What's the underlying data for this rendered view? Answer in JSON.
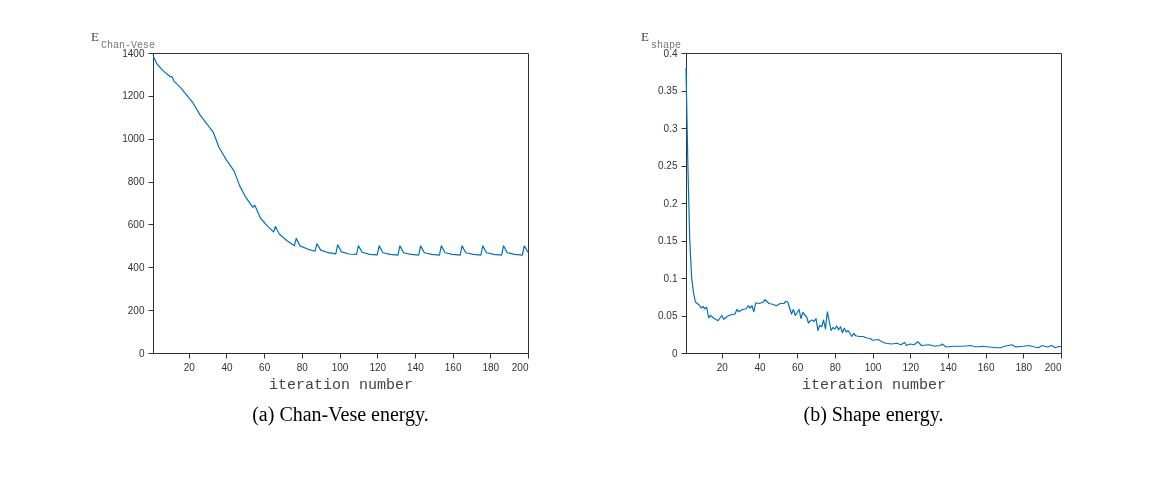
{
  "chart_data": [
    {
      "type": "line",
      "title": "(a) Chan-Vese energy.",
      "xlabel": "iteration number",
      "ylabel": "E$_{Chan-Vese}$",
      "grid": false,
      "line_style": "solid",
      "xlim": [
        1,
        200
      ],
      "xticks": [
        20,
        40,
        60,
        80,
        100,
        120,
        140,
        160,
        180,
        200
      ],
      "ylim": [
        0,
        1400
      ],
      "yticks": [
        0,
        200,
        400,
        600,
        800,
        1000,
        1200,
        1400
      ],
      "series": [
        {
          "color": "#0072bd",
          "x": [
            1,
            3,
            6,
            10,
            11,
            12,
            16,
            22,
            26,
            30,
            33,
            36,
            40,
            44,
            47,
            50,
            54,
            55,
            58,
            62,
            65,
            66,
            68,
            72,
            76,
            77,
            79,
            83,
            87,
            88,
            90,
            94,
            98,
            99,
            101,
            105,
            109,
            110,
            112,
            116,
            120,
            121,
            123,
            127,
            131,
            132,
            134,
            138,
            142,
            143,
            145,
            149,
            153,
            154,
            156,
            160,
            164,
            165,
            167,
            171,
            175,
            176,
            178,
            182,
            186,
            187,
            189,
            193,
            197,
            198,
            200
          ],
          "values": [
            1390,
            1350,
            1320,
            1290,
            1290,
            1270,
            1235,
            1170,
            1110,
            1065,
            1030,
            960,
            900,
            850,
            780,
            730,
            680,
            690,
            630,
            590,
            565,
            590,
            555,
            525,
            500,
            535,
            500,
            485,
            475,
            510,
            480,
            468,
            463,
            505,
            472,
            462,
            460,
            500,
            470,
            460,
            458,
            500,
            468,
            460,
            457,
            500,
            468,
            460,
            457,
            500,
            468,
            460,
            457,
            500,
            468,
            460,
            457,
            500,
            468,
            460,
            457,
            500,
            468,
            460,
            457,
            500,
            468,
            460,
            457,
            500,
            470
          ]
        }
      ]
    },
    {
      "type": "line",
      "title": "(b) Shape energy.",
      "xlabel": "iteration number",
      "ylabel": "E$_{shape}$",
      "grid": false,
      "line_style": "solid",
      "xlim": [
        1,
        200
      ],
      "xticks": [
        20,
        40,
        60,
        80,
        100,
        120,
        140,
        160,
        180,
        200
      ],
      "ylim": [
        0,
        0.4
      ],
      "yticks": [
        0,
        0.05,
        0.1,
        0.15,
        0.2,
        0.25,
        0.3,
        0.35,
        0.4
      ],
      "series": [
        {
          "color": "#0072bd",
          "x": [
            1,
            2,
            3,
            4,
            5,
            6,
            7,
            8,
            9,
            10,
            11,
            12,
            13,
            14,
            16,
            18,
            20,
            21,
            23,
            25,
            27,
            28,
            29,
            31,
            33,
            34,
            35,
            36,
            37,
            38,
            40,
            42,
            43,
            45,
            47,
            49,
            51,
            53,
            54,
            55,
            57,
            58,
            59,
            61,
            62,
            63,
            65,
            66,
            67,
            68,
            69,
            70,
            71,
            72,
            73,
            74,
            75,
            76,
            78,
            79,
            80,
            81,
            82,
            83,
            84,
            85,
            86,
            87,
            89,
            90,
            91,
            93,
            95,
            97,
            99,
            100,
            103,
            105,
            107,
            110,
            113,
            115,
            117,
            118,
            120,
            122,
            124,
            126,
            130,
            133,
            136,
            137,
            139,
            143,
            148,
            152,
            155,
            158,
            162,
            166,
            168,
            170,
            174,
            176,
            180,
            183,
            186,
            188,
            190,
            193,
            195,
            197,
            199,
            200
          ],
          "values": [
            0.38,
            0.25,
            0.15,
            0.1,
            0.08,
            0.068,
            0.066,
            0.064,
            0.06,
            0.062,
            0.059,
            0.061,
            0.047,
            0.05,
            0.046,
            0.043,
            0.05,
            0.045,
            0.049,
            0.051,
            0.052,
            0.058,
            0.055,
            0.058,
            0.059,
            0.063,
            0.06,
            0.063,
            0.055,
            0.067,
            0.066,
            0.068,
            0.071,
            0.066,
            0.065,
            0.063,
            0.066,
            0.066,
            0.069,
            0.068,
            0.052,
            0.058,
            0.05,
            0.058,
            0.046,
            0.054,
            0.048,
            0.04,
            0.043,
            0.044,
            0.042,
            0.046,
            0.03,
            0.037,
            0.035,
            0.044,
            0.032,
            0.055,
            0.03,
            0.034,
            0.032,
            0.036,
            0.031,
            0.035,
            0.027,
            0.033,
            0.028,
            0.03,
            0.022,
            0.026,
            0.023,
            0.022,
            0.022,
            0.02,
            0.019,
            0.017,
            0.018,
            0.015,
            0.013,
            0.012,
            0.013,
            0.011,
            0.014,
            0.01,
            0.012,
            0.011,
            0.015,
            0.01,
            0.011,
            0.009,
            0.01,
            0.012,
            0.008,
            0.009,
            0.009,
            0.01,
            0.008,
            0.009,
            0.008,
            0.007,
            0.007,
            0.009,
            0.011,
            0.008,
            0.009,
            0.01,
            0.008,
            0.007,
            0.01,
            0.008,
            0.01,
            0.007,
            0.009,
            0.008
          ]
        }
      ]
    }
  ]
}
